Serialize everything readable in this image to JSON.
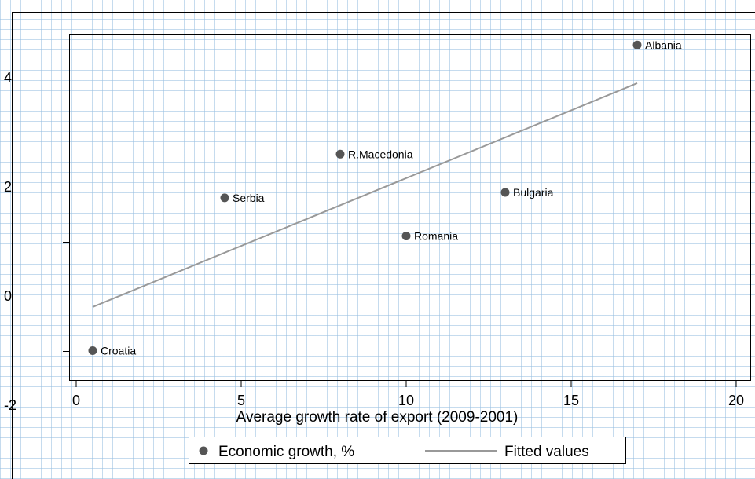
{
  "chart_data": {
    "type": "scatter",
    "title": "",
    "xlabel": "Average growth rate of export (2009-2001)",
    "ylabel": "",
    "xlim": [
      0,
      20
    ],
    "ylim": [
      -2,
      5
    ],
    "x_ticks": [
      "0",
      "5",
      "10",
      "15",
      "20"
    ],
    "y_ticks": [
      "-2",
      "0",
      "2",
      "4"
    ],
    "series": [
      {
        "name": "Economic growth, %",
        "color": "#555555",
        "points": [
          {
            "label": "Albania",
            "x": 17.0,
            "y": 4.6
          },
          {
            "label": "R.Macedonia",
            "x": 8.0,
            "y": 2.6
          },
          {
            "label": "Serbia",
            "x": 4.5,
            "y": 1.8
          },
          {
            "label": "Bulgaria",
            "x": 13.0,
            "y": 1.9
          },
          {
            "label": "Romania",
            "x": 10.0,
            "y": 1.1
          },
          {
            "label": "Croatia",
            "x": 0.5,
            "y": -1.0
          }
        ]
      },
      {
        "name": "Fitted values",
        "color": "#999999",
        "line": [
          {
            "x": 0.5,
            "y": -0.2
          },
          {
            "x": 17.0,
            "y": 3.9
          }
        ]
      }
    ],
    "legend": {
      "position": "bottom",
      "entries": [
        "Economic growth, %",
        "Fitted values"
      ]
    },
    "grid": true
  }
}
